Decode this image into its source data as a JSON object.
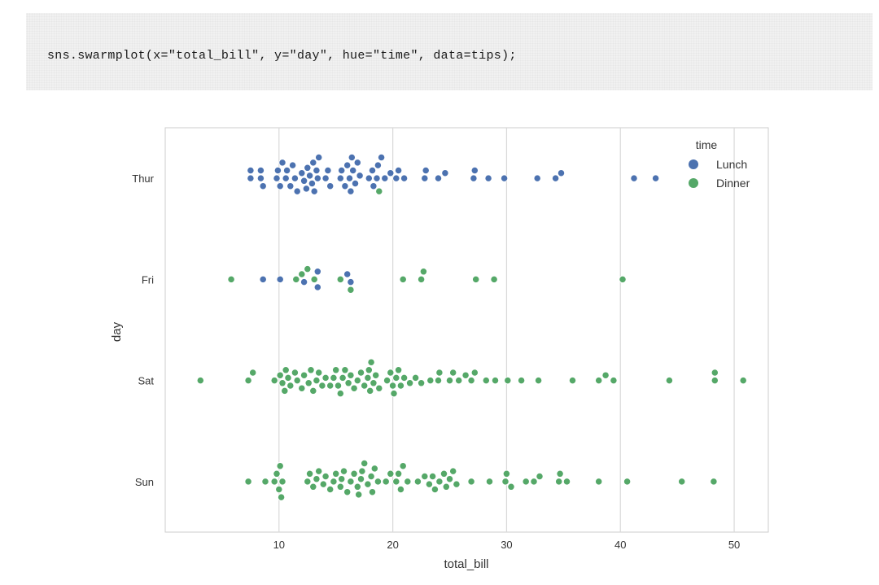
{
  "code_cell": {
    "code": "sns.swarmplot(x=\"total_bill\", y=\"day\", hue=\"time\", data=tips);"
  },
  "chart_data": {
    "type": "scatter",
    "subtype": "swarm",
    "title": "",
    "xlabel": "total_bill",
    "ylabel": "day",
    "xlim": [
      0,
      53
    ],
    "xticks": [
      10,
      20,
      30,
      40,
      50
    ],
    "categories": [
      "Thur",
      "Fri",
      "Sat",
      "Sun"
    ],
    "grid": true,
    "legend": {
      "title": "time",
      "placement": "top-right",
      "entries": [
        "Lunch",
        "Dinner"
      ]
    },
    "colors": {
      "Lunch": "#4c72b0",
      "Dinner": "#55a868"
    },
    "series": [
      {
        "name": "Lunch",
        "points": [
          {
            "day": "Thur",
            "x": 7.5
          },
          {
            "day": "Thur",
            "x": 7.5
          },
          {
            "day": "Thur",
            "x": 8.4
          },
          {
            "day": "Thur",
            "x": 8.4
          },
          {
            "day": "Thur",
            "x": 8.6
          },
          {
            "day": "Thur",
            "x": 9.8
          },
          {
            "day": "Thur",
            "x": 9.9
          },
          {
            "day": "Thur",
            "x": 10.1
          },
          {
            "day": "Thur",
            "x": 10.3
          },
          {
            "day": "Thur",
            "x": 10.6
          },
          {
            "day": "Thur",
            "x": 10.7
          },
          {
            "day": "Thur",
            "x": 11.0
          },
          {
            "day": "Thur",
            "x": 11.2
          },
          {
            "day": "Thur",
            "x": 11.4
          },
          {
            "day": "Thur",
            "x": 11.6
          },
          {
            "day": "Thur",
            "x": 12.0
          },
          {
            "day": "Thur",
            "x": 12.2
          },
          {
            "day": "Thur",
            "x": 12.4
          },
          {
            "day": "Thur",
            "x": 12.5
          },
          {
            "day": "Thur",
            "x": 12.7
          },
          {
            "day": "Thur",
            "x": 12.9
          },
          {
            "day": "Thur",
            "x": 13.0
          },
          {
            "day": "Thur",
            "x": 13.1
          },
          {
            "day": "Thur",
            "x": 13.3
          },
          {
            "day": "Thur",
            "x": 13.4
          },
          {
            "day": "Thur",
            "x": 13.5
          },
          {
            "day": "Thur",
            "x": 14.1
          },
          {
            "day": "Thur",
            "x": 14.3
          },
          {
            "day": "Thur",
            "x": 14.5
          },
          {
            "day": "Thur",
            "x": 15.4
          },
          {
            "day": "Thur",
            "x": 15.5
          },
          {
            "day": "Thur",
            "x": 15.8
          },
          {
            "day": "Thur",
            "x": 16.0
          },
          {
            "day": "Thur",
            "x": 16.2
          },
          {
            "day": "Thur",
            "x": 16.3
          },
          {
            "day": "Thur",
            "x": 16.4
          },
          {
            "day": "Thur",
            "x": 16.5
          },
          {
            "day": "Thur",
            "x": 16.7
          },
          {
            "day": "Thur",
            "x": 16.9
          },
          {
            "day": "Thur",
            "x": 17.1
          },
          {
            "day": "Thur",
            "x": 17.9
          },
          {
            "day": "Thur",
            "x": 18.2
          },
          {
            "day": "Thur",
            "x": 18.3
          },
          {
            "day": "Thur",
            "x": 18.6
          },
          {
            "day": "Thur",
            "x": 18.7
          },
          {
            "day": "Thur",
            "x": 19.0
          },
          {
            "day": "Thur",
            "x": 19.3
          },
          {
            "day": "Thur",
            "x": 19.8
          },
          {
            "day": "Thur",
            "x": 20.3
          },
          {
            "day": "Thur",
            "x": 20.5
          },
          {
            "day": "Thur",
            "x": 21.0
          },
          {
            "day": "Thur",
            "x": 22.8
          },
          {
            "day": "Thur",
            "x": 22.9
          },
          {
            "day": "Thur",
            "x": 24.0
          },
          {
            "day": "Thur",
            "x": 24.6
          },
          {
            "day": "Thur",
            "x": 27.1
          },
          {
            "day": "Thur",
            "x": 27.2
          },
          {
            "day": "Thur",
            "x": 28.4
          },
          {
            "day": "Thur",
            "x": 29.8
          },
          {
            "day": "Thur",
            "x": 32.7
          },
          {
            "day": "Thur",
            "x": 34.3
          },
          {
            "day": "Thur",
            "x": 34.8
          },
          {
            "day": "Thur",
            "x": 41.2
          },
          {
            "day": "Thur",
            "x": 43.1
          },
          {
            "day": "Fri",
            "x": 8.6
          },
          {
            "day": "Fri",
            "x": 10.1
          },
          {
            "day": "Fri",
            "x": 12.2
          },
          {
            "day": "Fri",
            "x": 13.4
          },
          {
            "day": "Fri",
            "x": 13.4
          },
          {
            "day": "Fri",
            "x": 16.0
          },
          {
            "day": "Fri",
            "x": 16.3
          }
        ]
      },
      {
        "name": "Dinner",
        "points": [
          {
            "day": "Thur",
            "x": 18.8
          },
          {
            "day": "Fri",
            "x": 5.8
          },
          {
            "day": "Fri",
            "x": 11.5
          },
          {
            "day": "Fri",
            "x": 12.0
          },
          {
            "day": "Fri",
            "x": 12.5
          },
          {
            "day": "Fri",
            "x": 13.1
          },
          {
            "day": "Fri",
            "x": 15.4
          },
          {
            "day": "Fri",
            "x": 16.3
          },
          {
            "day": "Fri",
            "x": 20.9
          },
          {
            "day": "Fri",
            "x": 22.5
          },
          {
            "day": "Fri",
            "x": 22.7
          },
          {
            "day": "Fri",
            "x": 27.3
          },
          {
            "day": "Fri",
            "x": 28.9
          },
          {
            "day": "Fri",
            "x": 40.2
          },
          {
            "day": "Sat",
            "x": 3.1
          },
          {
            "day": "Sat",
            "x": 7.3
          },
          {
            "day": "Sat",
            "x": 7.7
          },
          {
            "day": "Sat",
            "x": 9.6
          },
          {
            "day": "Sat",
            "x": 10.1
          },
          {
            "day": "Sat",
            "x": 10.3
          },
          {
            "day": "Sat",
            "x": 10.5
          },
          {
            "day": "Sat",
            "x": 10.6
          },
          {
            "day": "Sat",
            "x": 10.8
          },
          {
            "day": "Sat",
            "x": 11.0
          },
          {
            "day": "Sat",
            "x": 11.4
          },
          {
            "day": "Sat",
            "x": 11.6
          },
          {
            "day": "Sat",
            "x": 12.0
          },
          {
            "day": "Sat",
            "x": 12.2
          },
          {
            "day": "Sat",
            "x": 12.6
          },
          {
            "day": "Sat",
            "x": 12.8
          },
          {
            "day": "Sat",
            "x": 13.0
          },
          {
            "day": "Sat",
            "x": 13.3
          },
          {
            "day": "Sat",
            "x": 13.5
          },
          {
            "day": "Sat",
            "x": 13.8
          },
          {
            "day": "Sat",
            "x": 14.1
          },
          {
            "day": "Sat",
            "x": 14.5
          },
          {
            "day": "Sat",
            "x": 14.8
          },
          {
            "day": "Sat",
            "x": 15.0
          },
          {
            "day": "Sat",
            "x": 15.2
          },
          {
            "day": "Sat",
            "x": 15.4
          },
          {
            "day": "Sat",
            "x": 15.6
          },
          {
            "day": "Sat",
            "x": 15.8
          },
          {
            "day": "Sat",
            "x": 16.1
          },
          {
            "day": "Sat",
            "x": 16.3
          },
          {
            "day": "Sat",
            "x": 16.6
          },
          {
            "day": "Sat",
            "x": 16.9
          },
          {
            "day": "Sat",
            "x": 17.2
          },
          {
            "day": "Sat",
            "x": 17.5
          },
          {
            "day": "Sat",
            "x": 17.8
          },
          {
            "day": "Sat",
            "x": 17.9
          },
          {
            "day": "Sat",
            "x": 18.0
          },
          {
            "day": "Sat",
            "x": 18.1
          },
          {
            "day": "Sat",
            "x": 18.3
          },
          {
            "day": "Sat",
            "x": 18.5
          },
          {
            "day": "Sat",
            "x": 18.8
          },
          {
            "day": "Sat",
            "x": 19.5
          },
          {
            "day": "Sat",
            "x": 19.8
          },
          {
            "day": "Sat",
            "x": 20.0
          },
          {
            "day": "Sat",
            "x": 20.1
          },
          {
            "day": "Sat",
            "x": 20.3
          },
          {
            "day": "Sat",
            "x": 20.5
          },
          {
            "day": "Sat",
            "x": 20.7
          },
          {
            "day": "Sat",
            "x": 21.0
          },
          {
            "day": "Sat",
            "x": 21.5
          },
          {
            "day": "Sat",
            "x": 22.0
          },
          {
            "day": "Sat",
            "x": 22.5
          },
          {
            "day": "Sat",
            "x": 23.3
          },
          {
            "day": "Sat",
            "x": 24.0
          },
          {
            "day": "Sat",
            "x": 24.1
          },
          {
            "day": "Sat",
            "x": 25.0
          },
          {
            "day": "Sat",
            "x": 25.3
          },
          {
            "day": "Sat",
            "x": 25.8
          },
          {
            "day": "Sat",
            "x": 26.4
          },
          {
            "day": "Sat",
            "x": 26.9
          },
          {
            "day": "Sat",
            "x": 27.2
          },
          {
            "day": "Sat",
            "x": 28.2
          },
          {
            "day": "Sat",
            "x": 29.0
          },
          {
            "day": "Sat",
            "x": 30.1
          },
          {
            "day": "Sat",
            "x": 31.3
          },
          {
            "day": "Sat",
            "x": 32.8
          },
          {
            "day": "Sat",
            "x": 35.8
          },
          {
            "day": "Sat",
            "x": 38.1
          },
          {
            "day": "Sat",
            "x": 38.7
          },
          {
            "day": "Sat",
            "x": 39.4
          },
          {
            "day": "Sat",
            "x": 44.3
          },
          {
            "day": "Sat",
            "x": 48.3
          },
          {
            "day": "Sat",
            "x": 48.3
          },
          {
            "day": "Sat",
            "x": 50.8
          },
          {
            "day": "Sun",
            "x": 7.3
          },
          {
            "day": "Sun",
            "x": 8.8
          },
          {
            "day": "Sun",
            "x": 9.6
          },
          {
            "day": "Sun",
            "x": 9.8
          },
          {
            "day": "Sun",
            "x": 10.0
          },
          {
            "day": "Sun",
            "x": 10.1
          },
          {
            "day": "Sun",
            "x": 10.2
          },
          {
            "day": "Sun",
            "x": 10.3
          },
          {
            "day": "Sun",
            "x": 10.3
          },
          {
            "day": "Sun",
            "x": 12.5
          },
          {
            "day": "Sun",
            "x": 12.7
          },
          {
            "day": "Sun",
            "x": 13.0
          },
          {
            "day": "Sun",
            "x": 13.3
          },
          {
            "day": "Sun",
            "x": 13.5
          },
          {
            "day": "Sun",
            "x": 13.9
          },
          {
            "day": "Sun",
            "x": 14.1
          },
          {
            "day": "Sun",
            "x": 14.5
          },
          {
            "day": "Sun",
            "x": 14.8
          },
          {
            "day": "Sun",
            "x": 15.0
          },
          {
            "day": "Sun",
            "x": 15.4
          },
          {
            "day": "Sun",
            "x": 15.5
          },
          {
            "day": "Sun",
            "x": 15.7
          },
          {
            "day": "Sun",
            "x": 16.0
          },
          {
            "day": "Sun",
            "x": 16.3
          },
          {
            "day": "Sun",
            "x": 16.6
          },
          {
            "day": "Sun",
            "x": 16.9
          },
          {
            "day": "Sun",
            "x": 17.0
          },
          {
            "day": "Sun",
            "x": 17.2
          },
          {
            "day": "Sun",
            "x": 17.3
          },
          {
            "day": "Sun",
            "x": 17.5
          },
          {
            "day": "Sun",
            "x": 17.8
          },
          {
            "day": "Sun",
            "x": 18.1
          },
          {
            "day": "Sun",
            "x": 18.2
          },
          {
            "day": "Sun",
            "x": 18.4
          },
          {
            "day": "Sun",
            "x": 18.7
          },
          {
            "day": "Sun",
            "x": 19.4
          },
          {
            "day": "Sun",
            "x": 19.8
          },
          {
            "day": "Sun",
            "x": 20.3
          },
          {
            "day": "Sun",
            "x": 20.5
          },
          {
            "day": "Sun",
            "x": 20.7
          },
          {
            "day": "Sun",
            "x": 20.9
          },
          {
            "day": "Sun",
            "x": 21.3
          },
          {
            "day": "Sun",
            "x": 22.2
          },
          {
            "day": "Sun",
            "x": 22.8
          },
          {
            "day": "Sun",
            "x": 23.2
          },
          {
            "day": "Sun",
            "x": 23.5
          },
          {
            "day": "Sun",
            "x": 23.7
          },
          {
            "day": "Sun",
            "x": 24.1
          },
          {
            "day": "Sun",
            "x": 24.5
          },
          {
            "day": "Sun",
            "x": 24.7
          },
          {
            "day": "Sun",
            "x": 25.0
          },
          {
            "day": "Sun",
            "x": 25.3
          },
          {
            "day": "Sun",
            "x": 25.6
          },
          {
            "day": "Sun",
            "x": 26.9
          },
          {
            "day": "Sun",
            "x": 28.5
          },
          {
            "day": "Sun",
            "x": 29.9
          },
          {
            "day": "Sun",
            "x": 30.0
          },
          {
            "day": "Sun",
            "x": 30.4
          },
          {
            "day": "Sun",
            "x": 31.7
          },
          {
            "day": "Sun",
            "x": 32.4
          },
          {
            "day": "Sun",
            "x": 32.9
          },
          {
            "day": "Sun",
            "x": 34.6
          },
          {
            "day": "Sun",
            "x": 34.7
          },
          {
            "day": "Sun",
            "x": 35.3
          },
          {
            "day": "Sun",
            "x": 38.1
          },
          {
            "day": "Sun",
            "x": 40.6
          },
          {
            "day": "Sun",
            "x": 45.4
          },
          {
            "day": "Sun",
            "x": 48.2
          }
        ]
      }
    ]
  }
}
